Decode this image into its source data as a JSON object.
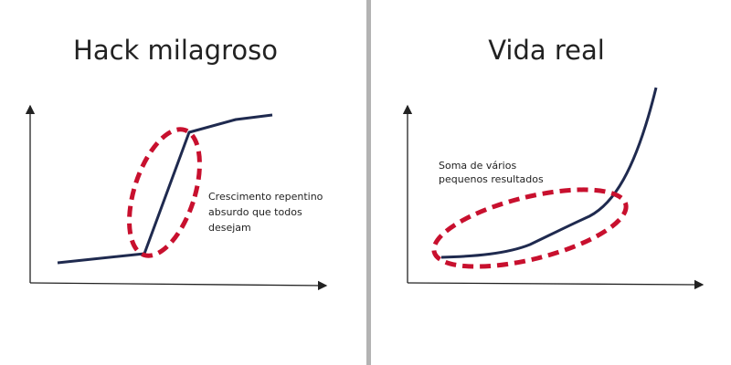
{
  "panels": [
    {
      "title": "Hack milagroso",
      "annotation": [
        "Crescimento repentino",
        "absurdo que todos",
        "desejam"
      ]
    },
    {
      "title": "Vida real",
      "annotation": [
        "Soma de vários",
        "pequenos resultados"
      ]
    }
  ]
}
